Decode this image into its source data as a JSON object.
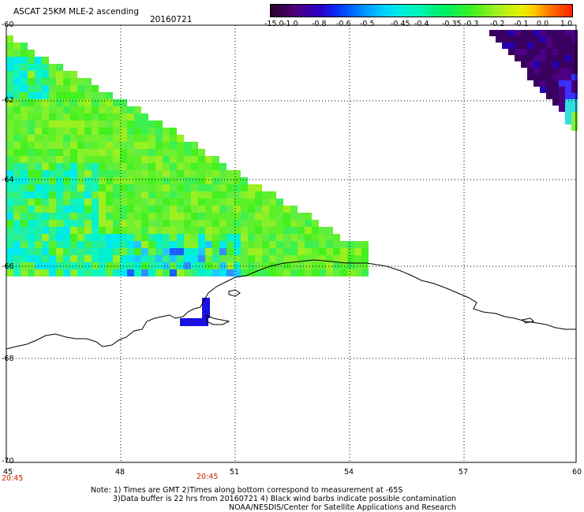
{
  "header": {
    "title": "ASCAT 25KM MLE-2 ascending",
    "date": "20160721"
  },
  "colorbar": {
    "labels": [
      "-15.0",
      "-1.0",
      "-0.8",
      "-0.6",
      "-0.5",
      "-0.45",
      "-0.4",
      "-0.35",
      "-0.3",
      "-0.2",
      "-0.1",
      "0.0",
      "1.0"
    ],
    "colors": [
      "#2a0030",
      "#50007a",
      "#2a00c8",
      "#0050ff",
      "#00a8ff",
      "#00e8e8",
      "#00f5b0",
      "#00f060",
      "#40f020",
      "#a0f020",
      "#e8f000",
      "#ff8000",
      "#ff2000"
    ]
  },
  "axes": {
    "y_labels": [
      "-60",
      "-62",
      "-64",
      "-66",
      "-68",
      "-70"
    ],
    "x_labels": [
      "45",
      "48",
      "51",
      "54",
      "57",
      "60"
    ],
    "time_labels": [
      "20:45",
      "20:45"
    ]
  },
  "notes": {
    "line1": "Note: 1) Times are GMT 2)Times along bottom correspond to measurement at -65S",
    "line2": "3)Data buffer is 22 hrs from 20160721 4) Black wind barbs indicate possible contamination",
    "line3": "NOAA/NESDIS/Center for Satellite Applications and Research"
  }
}
